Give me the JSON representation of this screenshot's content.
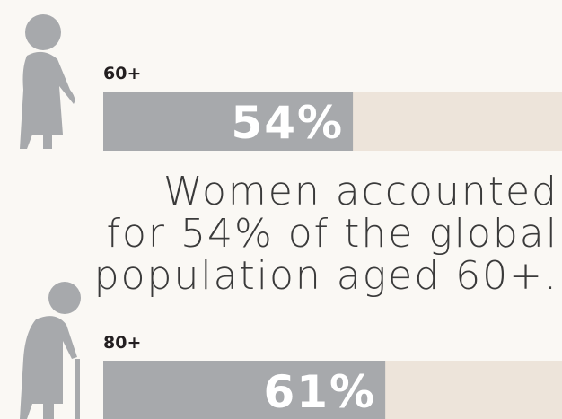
{
  "chart_data": {
    "type": "bar",
    "categories": [
      "60+",
      "80+"
    ],
    "values": [
      54,
      61
    ],
    "value_labels": [
      "54%",
      "61%"
    ],
    "xlim": [
      0,
      100
    ],
    "color": "#a7a9ac",
    "track_color": "#ede4da",
    "annotation": [
      "Women accounted",
      "for 54% of the global",
      "population aged 60+."
    ]
  }
}
